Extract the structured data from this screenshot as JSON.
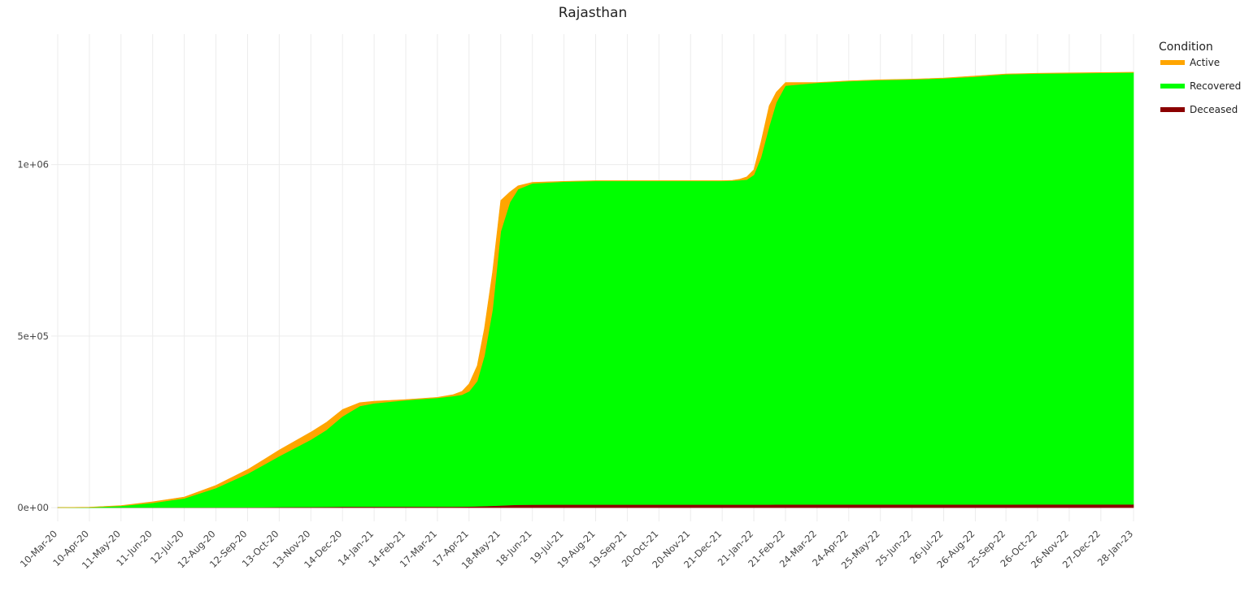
{
  "chart_data": {
    "type": "area",
    "stacked": true,
    "title": "Rajasthan",
    "xlabel": "",
    "ylabel": "",
    "ylim": [
      -40000,
      1380000
    ],
    "y_ticks": [
      0,
      500000,
      1000000
    ],
    "y_tick_labels": [
      "0e+00",
      "5e+05",
      "1e+06"
    ],
    "x_tick_labels": [
      "10-Mar-20",
      "10-Apr-20",
      "11-May-20",
      "11-Jun-20",
      "12-Jul-20",
      "12-Aug-20",
      "12-Sep-20",
      "13-Oct-20",
      "13-Nov-20",
      "14-Dec-20",
      "14-Jan-21",
      "14-Feb-21",
      "17-Mar-21",
      "17-Apr-21",
      "18-May-21",
      "18-Jun-21",
      "19-Jul-21",
      "19-Aug-21",
      "19-Sep-21",
      "20-Oct-21",
      "20-Nov-21",
      "21-Dec-21",
      "21-Jan-22",
      "21-Feb-22",
      "24-Mar-22",
      "24-Apr-22",
      "25-May-22",
      "25-Jun-22",
      "26-Jul-22",
      "26-Aug-22",
      "25-Sep-22",
      "26-Oct-22",
      "26-Nov-22",
      "27-Dec-22",
      "28-Jan-23"
    ],
    "grid": true,
    "legend": {
      "title": "Condition",
      "placement": "right"
    },
    "x": [
      "10-Mar-20",
      "10-Apr-20",
      "11-May-20",
      "11-Jun-20",
      "12-Jul-20",
      "12-Aug-20",
      "12-Sep-20",
      "28-Sep-20",
      "13-Oct-20",
      "13-Nov-20",
      "28-Nov-20",
      "14-Dec-20",
      "31-Dec-20",
      "14-Jan-21",
      "14-Feb-21",
      "17-Mar-21",
      "1-Apr-21",
      "10-Apr-21",
      "17-Apr-21",
      "25-Apr-21",
      "2-May-21",
      "10-May-21",
      "18-May-21",
      "27-May-21",
      "4-Jun-21",
      "18-Jun-21",
      "19-Jul-21",
      "19-Aug-21",
      "19-Sep-21",
      "20-Oct-21",
      "20-Nov-21",
      "21-Dec-21",
      "31-Dec-21",
      "7-Jan-22",
      "14-Jan-22",
      "21-Jan-22",
      "28-Jan-22",
      "5-Feb-22",
      "12-Feb-22",
      "21-Feb-22",
      "24-Mar-22",
      "24-Apr-22",
      "25-May-22",
      "25-Jun-22",
      "26-Jul-22",
      "26-Aug-22",
      "25-Sep-22",
      "26-Oct-22",
      "26-Nov-22",
      "27-Dec-22",
      "28-Jan-23"
    ],
    "series": [
      {
        "name": "Deceased",
        "color": "#8b0000",
        "values": [
          0,
          100,
          200,
          300,
          500,
          700,
          1000,
          1200,
          1500,
          2000,
          2200,
          2500,
          2650,
          2700,
          2750,
          2800,
          2900,
          3000,
          3200,
          3800,
          4500,
          5500,
          6500,
          7500,
          8200,
          8600,
          8900,
          8950,
          8950,
          8950,
          8950,
          8950,
          8960,
          8970,
          9000,
          9020,
          9050,
          9100,
          9150,
          9200,
          9250,
          9280,
          9300,
          9310,
          9320,
          9330,
          9340,
          9350,
          9360,
          9370,
          9380
        ]
      },
      {
        "name": "Recovered",
        "color": "#00ff00",
        "values": [
          0,
          800,
          4800,
          13700,
          26500,
          56300,
          98000,
          123800,
          148500,
          196000,
          223800,
          263500,
          293350,
          301300,
          310250,
          317200,
          322100,
          326000,
          335800,
          365200,
          437500,
          570500,
          798500,
          882500,
          919800,
          936400,
          941100,
          943050,
          943050,
          943050,
          943050,
          943050,
          944040,
          945030,
          947000,
          960980,
          1010950,
          1101900,
          1171850,
          1220800,
          1228750,
          1233720,
          1236700,
          1238690,
          1241680,
          1246670,
          1253660,
          1255650,
          1256640,
          1257630,
          1258620
        ]
      },
      {
        "name": "Active",
        "color": "#ffa500",
        "values": [
          0,
          200,
          1000,
          3000,
          4000,
          8000,
          12000,
          15000,
          18000,
          22000,
          22000,
          20000,
          10000,
          6000,
          2000,
          1500,
          4000,
          10000,
          22000,
          45000,
          80000,
          110000,
          90000,
          30000,
          10000,
          3000,
          1000,
          1000,
          1000,
          1000,
          1000,
          1000,
          1000,
          3000,
          8000,
          15000,
          45000,
          60000,
          30000,
          9000,
          1000,
          1000,
          1000,
          1000,
          1000,
          2000,
          1000,
          1000,
          1000,
          1000,
          1000
        ]
      }
    ]
  }
}
